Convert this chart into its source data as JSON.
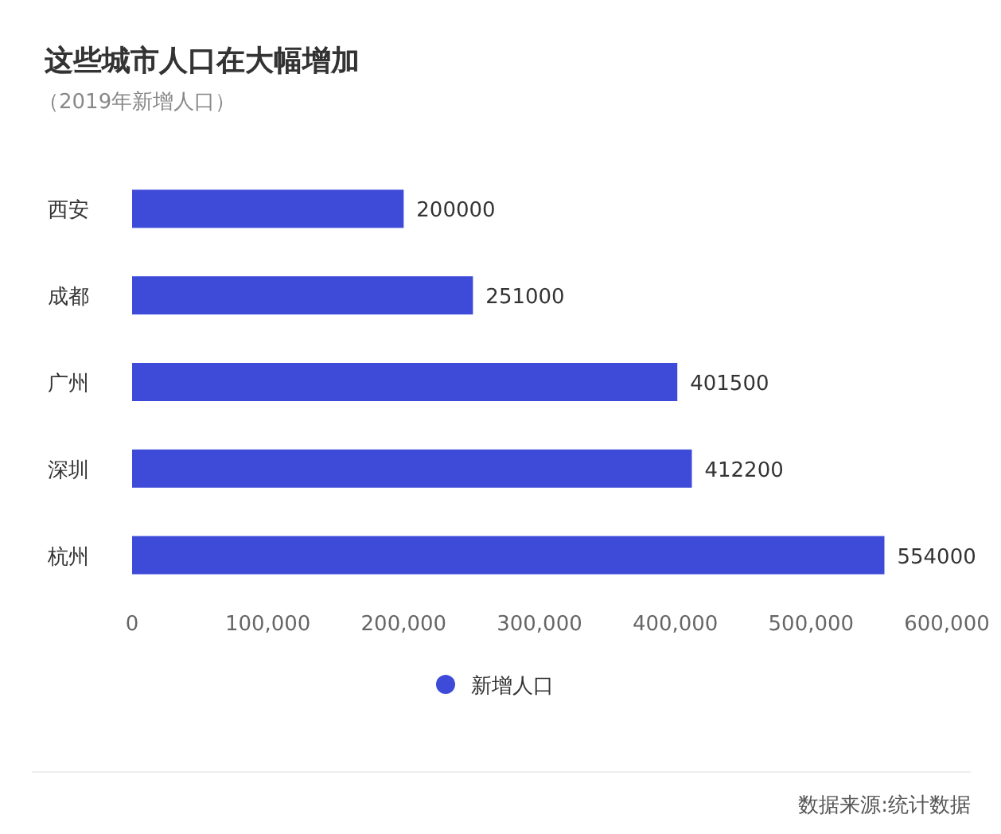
{
  "chart_data": {
    "type": "bar",
    "orientation": "horizontal",
    "title": "这些城市人口在大幅增加",
    "subtitle": "（2019年新增人口）",
    "categories": [
      "西安",
      "成都",
      "广州",
      "深圳",
      "杭州"
    ],
    "series": [
      {
        "name": "新增人口",
        "color": "#3d4bd8",
        "values": [
          200000,
          251000,
          401500,
          412200,
          554000
        ]
      }
    ],
    "xlim": [
      0,
      600000
    ],
    "xticks": [
      0,
      {
        "value": 100000,
        "label": "100,000"
      },
      {
        "value": 200000,
        "label": "200,000"
      },
      {
        "value": 300000,
        "label": "300,000"
      },
      {
        "value": 400000,
        "label": "400,000"
      },
      {
        "value": 500000,
        "label": "500,000"
      },
      {
        "value": 600000,
        "label": "600,000"
      }
    ],
    "data_labels": true,
    "legend": "bottom",
    "annotations": [
      "数据来源:统计数据"
    ]
  }
}
